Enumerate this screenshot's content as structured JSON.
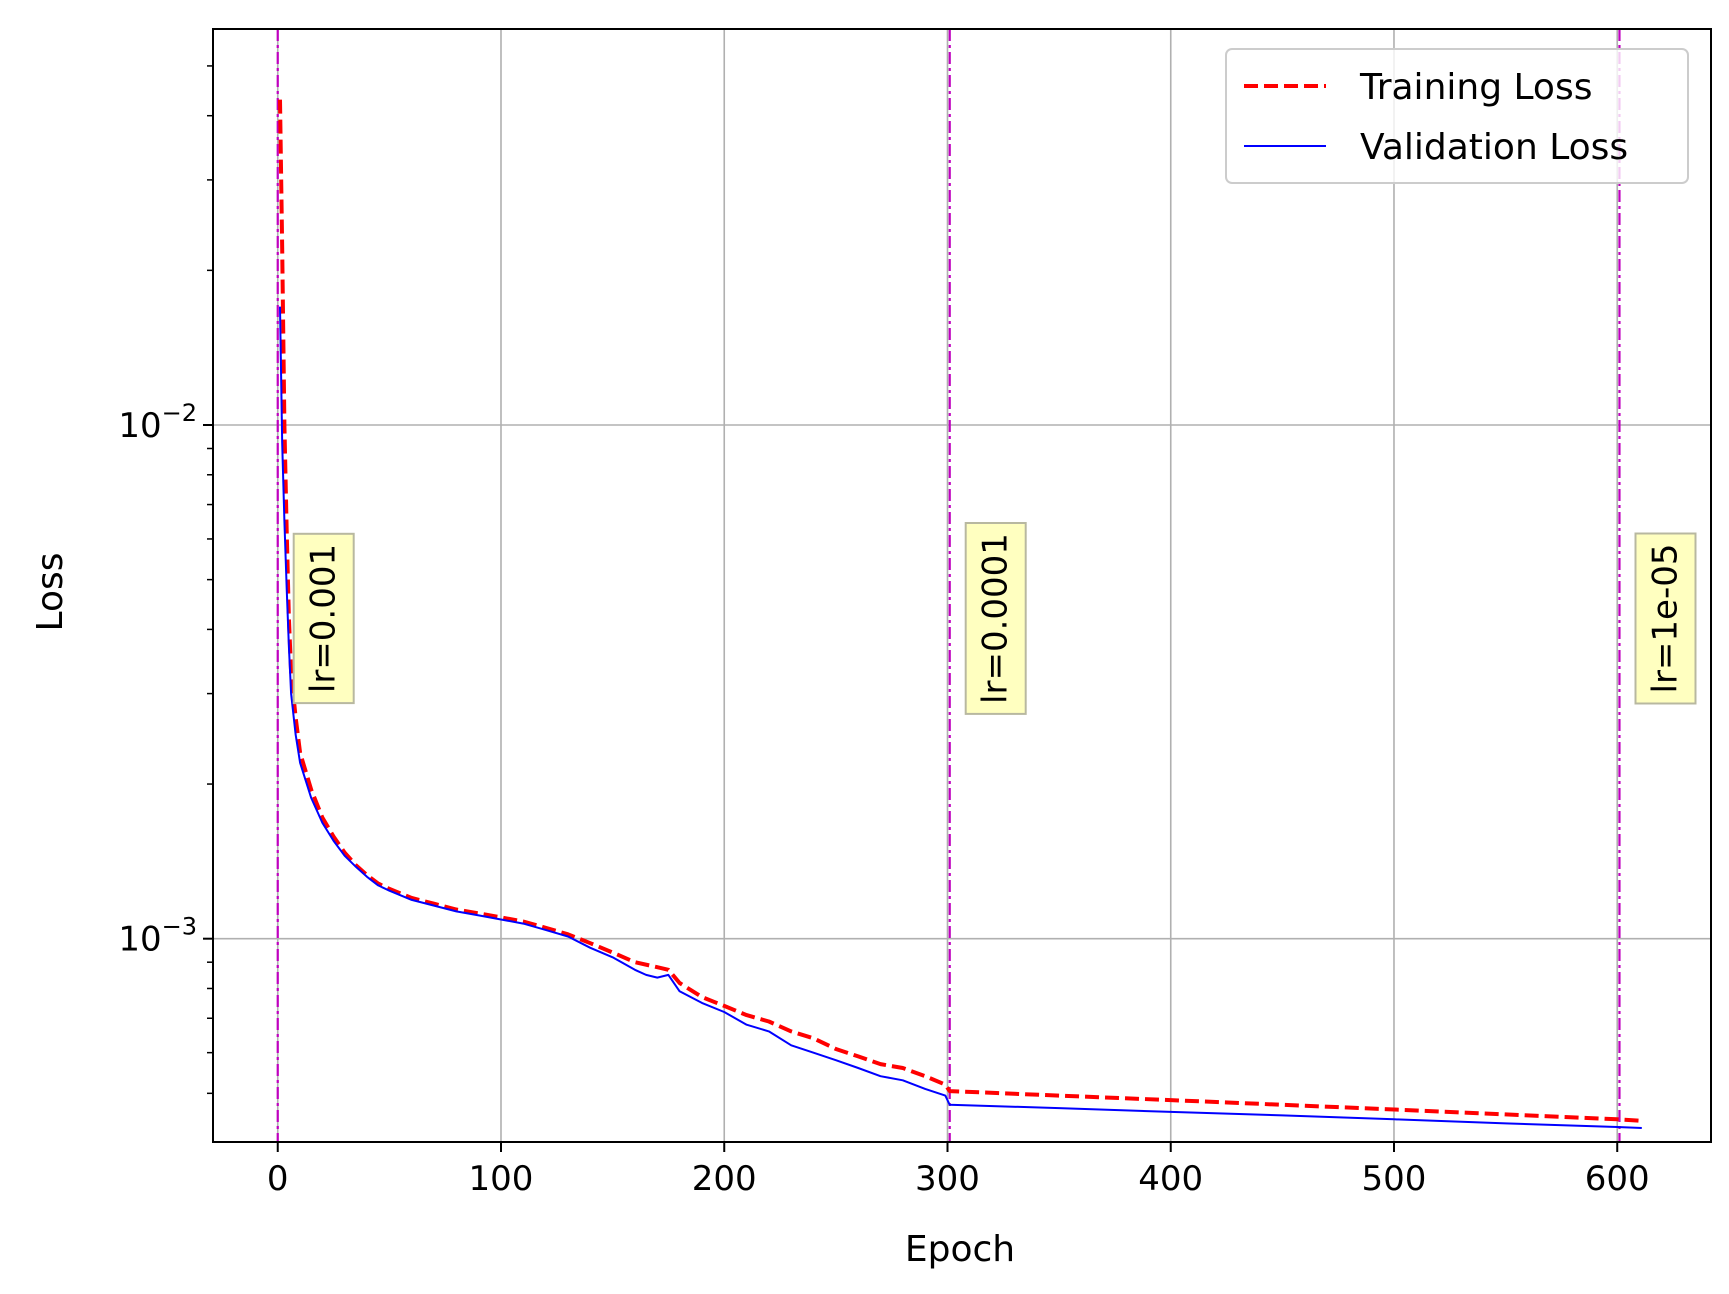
{
  "chart_data": {
    "type": "line",
    "xlabel": "Epoch",
    "ylabel": "Loss",
    "xlim": [
      -29,
      642
    ],
    "ylim": [
      0.000402,
      0.059
    ],
    "yscale": "log",
    "grid": true,
    "legend_position": "top-right",
    "x_ticks": [
      {
        "value": 0,
        "label": "0"
      },
      {
        "value": 100,
        "label": "100"
      },
      {
        "value": 200,
        "label": "200"
      },
      {
        "value": 300,
        "label": "300"
      },
      {
        "value": 400,
        "label": "400"
      },
      {
        "value": 500,
        "label": "500"
      },
      {
        "value": 600,
        "label": "600"
      }
    ],
    "y_major_ticks": [
      {
        "value": 0.01,
        "base": "10",
        "exp": "−2"
      },
      {
        "value": 0.001,
        "base": "10",
        "exp": "−3"
      }
    ],
    "series": [
      {
        "name": "Training Loss",
        "color": "#ff0000",
        "style": "dashed",
        "points": [
          [
            1,
            0.043
          ],
          [
            2,
            0.022
          ],
          [
            3,
            0.01
          ],
          [
            4,
            0.0062
          ],
          [
            5,
            0.0042
          ],
          [
            6,
            0.0033
          ],
          [
            8,
            0.0027
          ],
          [
            10,
            0.0023
          ],
          [
            15,
            0.00195
          ],
          [
            20,
            0.00172
          ],
          [
            25,
            0.00158
          ],
          [
            30,
            0.00147
          ],
          [
            35,
            0.00139
          ],
          [
            40,
            0.00133
          ],
          [
            45,
            0.00128
          ],
          [
            50,
            0.00125
          ],
          [
            60,
            0.0012
          ],
          [
            70,
            0.00117
          ],
          [
            80,
            0.00114
          ],
          [
            90,
            0.00112
          ],
          [
            100,
            0.0011
          ],
          [
            110,
            0.00108
          ],
          [
            120,
            0.00105
          ],
          [
            130,
            0.00102
          ],
          [
            140,
            0.00098
          ],
          [
            150,
            0.00094
          ],
          [
            160,
            0.0009
          ],
          [
            170,
            0.00088
          ],
          [
            175,
            0.00087
          ],
          [
            180,
            0.00082
          ],
          [
            190,
            0.00077
          ],
          [
            200,
            0.00074
          ],
          [
            210,
            0.00071
          ],
          [
            220,
            0.00069
          ],
          [
            230,
            0.00066
          ],
          [
            240,
            0.00064
          ],
          [
            250,
            0.00061
          ],
          [
            260,
            0.00059
          ],
          [
            270,
            0.00057
          ],
          [
            280,
            0.00056
          ],
          [
            290,
            0.00054
          ],
          [
            299,
            0.00052
          ],
          [
            301,
            0.000505
          ],
          [
            350,
            0.000495
          ],
          [
            400,
            0.000485
          ],
          [
            450,
            0.000475
          ],
          [
            500,
            0.000465
          ],
          [
            550,
            0.000455
          ],
          [
            600,
            0.000445
          ],
          [
            611,
            0.000442
          ]
        ]
      },
      {
        "name": "Validation Loss",
        "color": "#0000ff",
        "style": "solid",
        "points": [
          [
            1,
            0.017
          ],
          [
            2,
            0.0092
          ],
          [
            3,
            0.0065
          ],
          [
            4,
            0.0048
          ],
          [
            5,
            0.0037
          ],
          [
            6,
            0.003
          ],
          [
            8,
            0.0025
          ],
          [
            10,
            0.0022
          ],
          [
            15,
            0.00188
          ],
          [
            20,
            0.00168
          ],
          [
            25,
            0.00155
          ],
          [
            30,
            0.00145
          ],
          [
            35,
            0.00138
          ],
          [
            40,
            0.00132
          ],
          [
            45,
            0.00127
          ],
          [
            50,
            0.00124
          ],
          [
            60,
            0.00119
          ],
          [
            70,
            0.00116
          ],
          [
            80,
            0.00113
          ],
          [
            90,
            0.00111
          ],
          [
            100,
            0.00109
          ],
          [
            110,
            0.00107
          ],
          [
            120,
            0.00104
          ],
          [
            130,
            0.00101
          ],
          [
            140,
            0.00096
          ],
          [
            150,
            0.00092
          ],
          [
            160,
            0.00087
          ],
          [
            165,
            0.00085
          ],
          [
            170,
            0.00084
          ],
          [
            175,
            0.00085
          ],
          [
            180,
            0.00079
          ],
          [
            190,
            0.00075
          ],
          [
            200,
            0.00072
          ],
          [
            210,
            0.00068
          ],
          [
            220,
            0.00066
          ],
          [
            230,
            0.00062
          ],
          [
            240,
            0.0006
          ],
          [
            250,
            0.00058
          ],
          [
            260,
            0.00056
          ],
          [
            270,
            0.00054
          ],
          [
            280,
            0.00053
          ],
          [
            290,
            0.00051
          ],
          [
            299,
            0.000495
          ],
          [
            301,
            0.000475
          ],
          [
            350,
            0.000468
          ],
          [
            400,
            0.00046
          ],
          [
            450,
            0.000453
          ],
          [
            500,
            0.000445
          ],
          [
            550,
            0.000437
          ],
          [
            600,
            0.00043
          ],
          [
            611,
            0.000428
          ]
        ]
      }
    ],
    "lr_markers": [
      {
        "epoch": 0,
        "label": "lr=0.001",
        "label_y": 0.0042
      },
      {
        "epoch": 301,
        "label": "lr=0.0001",
        "label_y": 0.0042
      },
      {
        "epoch": 601,
        "label": "lr=1e-05",
        "label_y": 0.0042
      }
    ],
    "marker_color": "#bf00bf",
    "label_box_color": "#ffffc0"
  }
}
